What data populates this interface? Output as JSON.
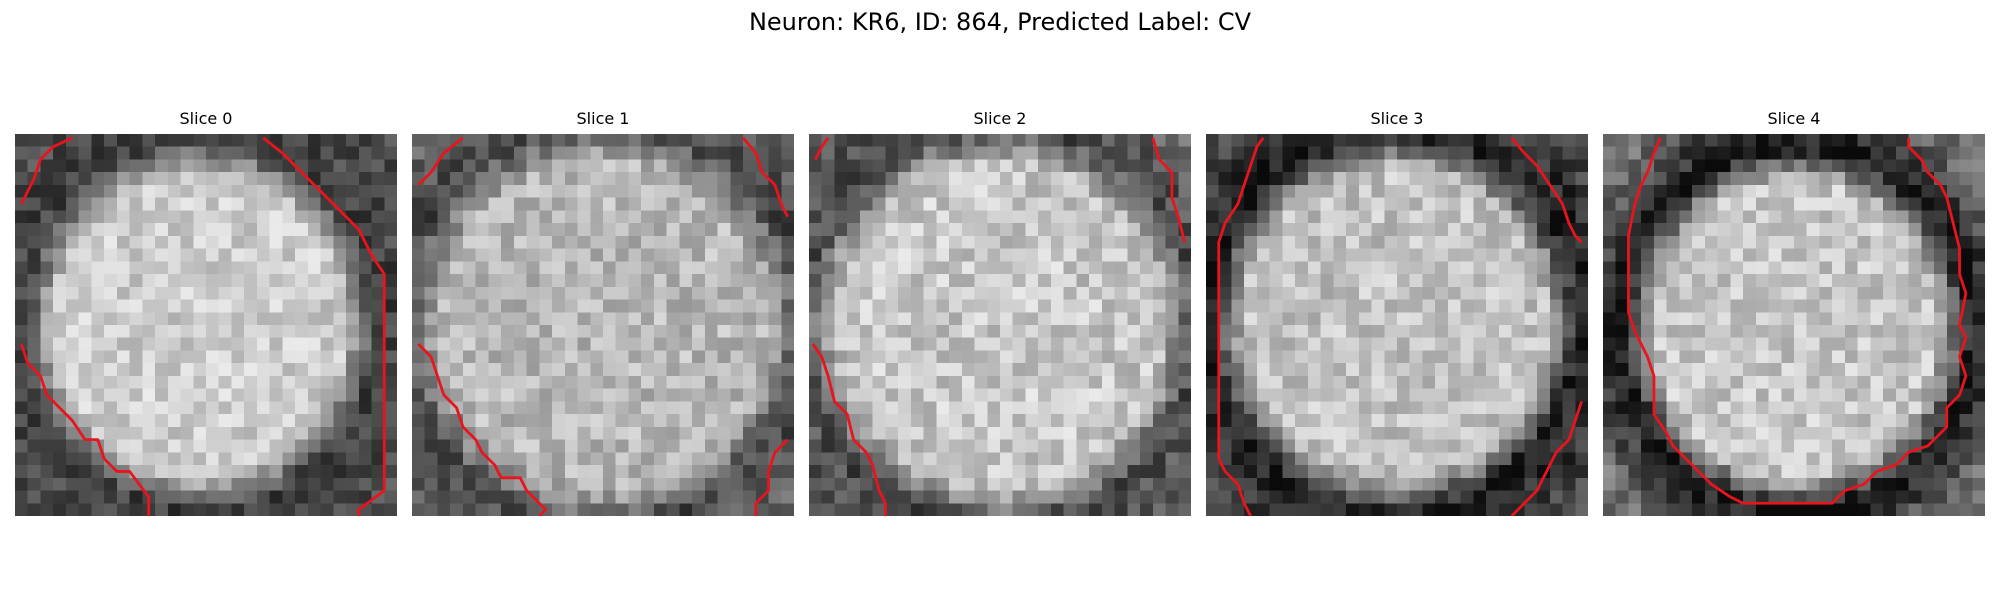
{
  "figure": {
    "title": "Neuron: KR6, ID: 864, Predicted Label: CV"
  },
  "panels": [
    {
      "title": "Slice 0"
    },
    {
      "title": "Slice 1"
    },
    {
      "title": "Slice 2"
    },
    {
      "title": "Slice 3"
    },
    {
      "title": "Slice 4"
    }
  ],
  "colors": {
    "contour": "#e8141e"
  }
}
